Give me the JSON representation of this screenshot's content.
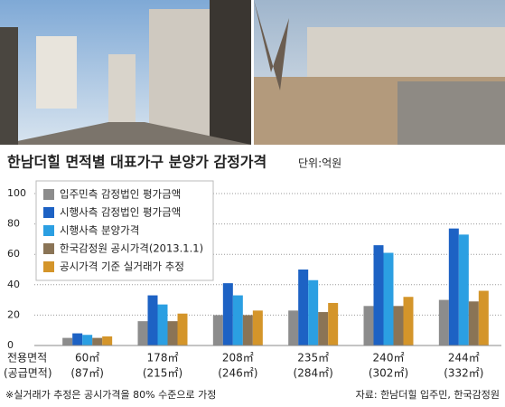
{
  "chart_data": {
    "type": "bar",
    "title": "한남더힐 면적별 대표가구 분양가 감정가격",
    "unit": "단위:억원",
    "x_label": "전용면적",
    "x_label_sub": "(공급면적)",
    "categories": [
      "60㎡",
      "178㎡",
      "208㎡",
      "235㎡",
      "240㎡",
      "244㎡"
    ],
    "categories_sub": [
      "(87㎡)",
      "(215㎡)",
      "(246㎡)",
      "(284㎡)",
      "(302㎡)",
      "(332㎡)"
    ],
    "series": [
      {
        "name": "입주민측 감정법인 평가금액",
        "color": "#8c8c8c",
        "values": [
          5,
          16,
          20,
          23,
          26,
          30
        ]
      },
      {
        "name": "시행사측 감정법인 평가금액",
        "color": "#1d62c4",
        "values": [
          8,
          33,
          41,
          50,
          66,
          77
        ]
      },
      {
        "name": "시행사측 분양가격",
        "color": "#2b9fe2",
        "values": [
          7,
          27,
          33,
          43,
          61,
          73
        ]
      },
      {
        "name": "한국감정원 공시가격(2013.1.1)",
        "color": "#8a7456",
        "values": [
          5,
          16,
          20,
          22,
          26,
          29
        ]
      },
      {
        "name": "공시가격 기준 실거래가 추정",
        "color": "#d4952a",
        "values": [
          6,
          21,
          23,
          28,
          32,
          36
        ]
      }
    ],
    "ylim": [
      0,
      100
    ],
    "yticks": [
      0,
      20,
      40,
      60,
      80,
      100
    ],
    "grid": true,
    "legend": "top-left",
    "note": "※실거래가 추정은 공시가격을 80% 수준으로 가정",
    "source": "자료: 한남더힐 입주민, 한국감정원"
  }
}
